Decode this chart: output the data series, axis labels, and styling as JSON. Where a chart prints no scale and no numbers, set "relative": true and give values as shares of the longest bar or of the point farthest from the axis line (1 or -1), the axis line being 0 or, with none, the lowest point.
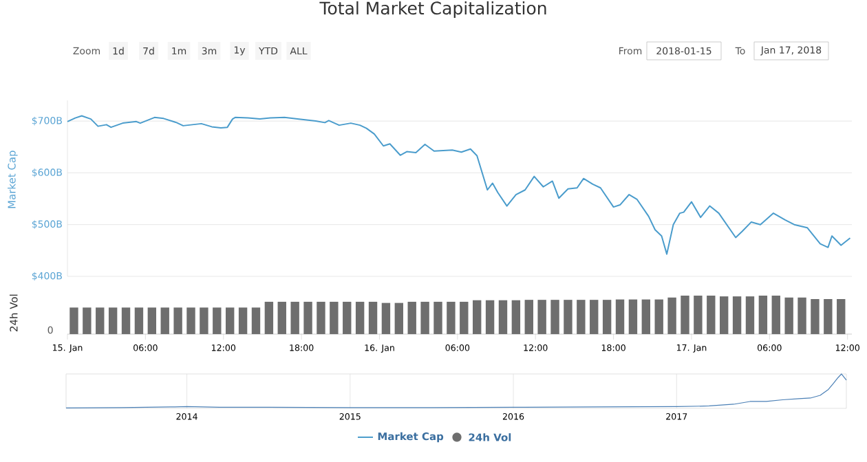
{
  "chart_data": [
    {
      "type": "line",
      "title": "Total Market Capitalization",
      "ylabel": "Market Cap",
      "annotations": [
        "Zoom",
        "1d",
        "7d",
        "1m",
        "3m",
        "1y",
        "YTD",
        "ALL",
        "From",
        "2018-01-15",
        "To",
        "Jan 17, 2018"
      ],
      "x": [
        "2018-01-15T00:00",
        "2018-01-15T00:36",
        "2018-01-15T01:06",
        "2018-01-15T01:48",
        "2018-01-15T02:21",
        "2018-01-15T03:00",
        "2018-01-15T03:21",
        "2018-01-15T04:15",
        "2018-01-15T05:18",
        "2018-01-15T05:36",
        "2018-01-15T06:42",
        "2018-01-15T07:24",
        "2018-01-15T08:24",
        "2018-01-15T08:54",
        "2018-01-15T09:36",
        "2018-01-15T10:18",
        "2018-01-15T11:06",
        "2018-01-15T11:48",
        "2018-01-15T12:18",
        "2018-01-15T12:42",
        "2018-01-15T12:54",
        "2018-01-15T13:54",
        "2018-01-15T14:48",
        "2018-01-15T15:36",
        "2018-01-15T16:42",
        "2018-01-15T17:42",
        "2018-01-15T19:06",
        "2018-01-15T19:48",
        "2018-01-15T20:06",
        "2018-01-15T20:54",
        "2018-01-15T21:48",
        "2018-01-15T22:30",
        "2018-01-15T23:00",
        "2018-01-15T23:36",
        "2018-01-16T00:18",
        "2018-01-16T00:48",
        "2018-01-16T01:36",
        "2018-01-16T02:06",
        "2018-01-16T02:48",
        "2018-01-16T03:30",
        "2018-01-16T04:12",
        "2018-01-16T05:36",
        "2018-01-16T06:18",
        "2018-01-16T07:00",
        "2018-01-16T07:30",
        "2018-01-16T08:18",
        "2018-01-16T08:42",
        "2018-01-16T09:06",
        "2018-01-16T09:48",
        "2018-01-16T10:30",
        "2018-01-16T11:12",
        "2018-01-16T11:54",
        "2018-01-16T12:36",
        "2018-01-16T13:18",
        "2018-01-16T13:48",
        "2018-01-16T14:30",
        "2018-01-16T15:12",
        "2018-01-16T15:42",
        "2018-01-16T16:24",
        "2018-01-16T17:00",
        "2018-01-16T18:00",
        "2018-01-16T18:30",
        "2018-01-16T19:12",
        "2018-01-16T19:48",
        "2018-01-16T20:42",
        "2018-01-16T21:12",
        "2018-01-16T21:42",
        "2018-01-16T22:06",
        "2018-01-16T22:36",
        "2018-01-16T23:06",
        "2018-01-16T23:24",
        "2018-01-17T00:00",
        "2018-01-17T00:42",
        "2018-01-17T01:24",
        "2018-01-17T02:06",
        "2018-01-17T03:24",
        "2018-01-17T03:54",
        "2018-01-17T04:36",
        "2018-01-17T05:18",
        "2018-01-17T06:18",
        "2018-01-17T07:12",
        "2018-01-17T07:54",
        "2018-01-17T08:54",
        "2018-01-17T09:54",
        "2018-01-17T10:30",
        "2018-01-17T10:48",
        "2018-01-17T11:30",
        "2018-01-17T12:12"
      ],
      "series": [
        {
          "name": "Market Cap",
          "color": "#4a9ccc",
          "values": [
            699,
            706,
            710,
            704,
            690,
            693,
            688,
            696,
            699,
            696,
            707,
            705,
            697,
            691,
            693,
            695,
            689,
            687,
            688,
            704,
            707,
            706,
            704,
            706,
            707,
            704,
            700,
            697,
            701,
            692,
            696,
            692,
            686,
            675,
            652,
            656,
            634,
            641,
            639,
            655,
            642,
            644,
            640,
            646,
            633,
            567,
            580,
            562,
            536,
            558,
            567,
            593,
            573,
            584,
            551,
            569,
            571,
            589,
            578,
            571,
            534,
            538,
            558,
            549,
            516,
            490,
            478,
            443,
            500,
            522,
            524,
            544,
            514,
            536,
            522,
            475,
            487,
            505,
            500,
            522,
            509,
            500,
            494,
            463,
            456,
            478,
            460,
            474
          ]
        }
      ],
      "xlim": [
        "2018-01-15T00:00",
        "2018-01-17T12:20"
      ],
      "ylim": [
        400,
        740
      ],
      "yticks": [
        {
          "value": 400,
          "label": "$400B"
        },
        {
          "value": 500,
          "label": "$500B"
        },
        {
          "value": 600,
          "label": "$600B"
        },
        {
          "value": 700,
          "label": "$700B"
        }
      ],
      "grid": "y",
      "legend": "bottom"
    },
    {
      "type": "bar",
      "ylabel": "24h Vol",
      "annotations": [
        "0"
      ],
      "x": [
        "2018-01-15T00:30",
        "2018-01-15T01:30",
        "2018-01-15T02:30",
        "2018-01-15T03:30",
        "2018-01-15T04:30",
        "2018-01-15T05:30",
        "2018-01-15T06:30",
        "2018-01-15T07:30",
        "2018-01-15T08:30",
        "2018-01-15T09:30",
        "2018-01-15T10:30",
        "2018-01-15T11:30",
        "2018-01-15T12:30",
        "2018-01-15T13:30",
        "2018-01-15T14:30",
        "2018-01-15T15:30",
        "2018-01-15T16:30",
        "2018-01-15T17:30",
        "2018-01-15T18:30",
        "2018-01-15T19:30",
        "2018-01-15T20:30",
        "2018-01-15T21:30",
        "2018-01-15T22:30",
        "2018-01-15T23:30",
        "2018-01-16T00:30",
        "2018-01-16T01:30",
        "2018-01-16T02:30",
        "2018-01-16T03:30",
        "2018-01-16T04:30",
        "2018-01-16T05:30",
        "2018-01-16T06:30",
        "2018-01-16T07:30",
        "2018-01-16T08:30",
        "2018-01-16T09:30",
        "2018-01-16T10:30",
        "2018-01-16T11:30",
        "2018-01-16T12:30",
        "2018-01-16T13:30",
        "2018-01-16T14:30",
        "2018-01-16T15:30",
        "2018-01-16T16:30",
        "2018-01-16T17:30",
        "2018-01-16T18:30",
        "2018-01-16T19:30",
        "2018-01-16T20:30",
        "2018-01-16T21:30",
        "2018-01-16T22:30",
        "2018-01-16T23:30",
        "2018-01-17T00:30",
        "2018-01-17T01:30",
        "2018-01-17T02:30",
        "2018-01-17T03:30",
        "2018-01-17T04:30",
        "2018-01-17T05:30",
        "2018-01-17T06:30",
        "2018-01-17T07:30",
        "2018-01-17T08:30",
        "2018-01-17T09:30",
        "2018-01-17T10:30",
        "2018-01-17T11:30"
      ],
      "series": [
        {
          "name": "24h Vol",
          "color": "#6e6e6e",
          "values": [
            0.69,
            0.69,
            0.69,
            0.69,
            0.69,
            0.69,
            0.69,
            0.69,
            0.69,
            0.69,
            0.69,
            0.69,
            0.69,
            0.69,
            0.69,
            0.84,
            0.84,
            0.84,
            0.84,
            0.84,
            0.84,
            0.84,
            0.84,
            0.84,
            0.81,
            0.81,
            0.84,
            0.84,
            0.84,
            0.84,
            0.84,
            0.88,
            0.88,
            0.88,
            0.88,
            0.89,
            0.89,
            0.89,
            0.89,
            0.89,
            0.89,
            0.89,
            0.9,
            0.9,
            0.9,
            0.9,
            0.95,
            1,
            1,
            1,
            0.98,
            0.98,
            0.98,
            1,
            1,
            0.95,
            0.95,
            0.91,
            0.91,
            0.91
          ]
        }
      ],
      "relative": true,
      "xlim": [
        "2018-01-15T00:00",
        "2018-01-17T12:20"
      ],
      "xticks": [
        {
          "value": "2018-01-15T00:00",
          "label": "15. Jan"
        },
        {
          "value": "2018-01-15T06:00",
          "label": "06:00"
        },
        {
          "value": "2018-01-15T12:00",
          "label": "12:00"
        },
        {
          "value": "2018-01-15T18:00",
          "label": "18:00"
        },
        {
          "value": "2018-01-16T00:00",
          "label": "16. Jan"
        },
        {
          "value": "2018-01-16T06:00",
          "label": "06:00"
        },
        {
          "value": "2018-01-16T12:00",
          "label": "12:00"
        },
        {
          "value": "2018-01-16T18:00",
          "label": "18:00"
        },
        {
          "value": "2018-01-17T00:00",
          "label": "17. Jan"
        },
        {
          "value": "2018-01-17T06:00",
          "label": "06:00"
        },
        {
          "value": "2018-01-17T12:00",
          "label": "12:00"
        }
      ],
      "legend": "bottom"
    },
    {
      "type": "line",
      "x": [
        2013.26,
        2013.6,
        2013.9,
        2014.0,
        2014.2,
        2014.5,
        2015.0,
        2015.5,
        2016.0,
        2016.5,
        2017.0,
        2017.2,
        2017.35,
        2017.45,
        2017.55,
        2017.65,
        2017.75,
        2017.82,
        2017.88,
        2017.93,
        2017.96,
        2017.99,
        2018.01,
        2018.03,
        2018.04
      ],
      "series": [
        {
          "color": "#4a7fb5",
          "values": [
            0.01,
            0.02,
            0.04,
            0.05,
            0.03,
            0.03,
            0.02,
            0.02,
            0.03,
            0.04,
            0.05,
            0.07,
            0.12,
            0.2,
            0.2,
            0.25,
            0.28,
            0.3,
            0.38,
            0.55,
            0.72,
            0.9,
            1,
            0.88,
            0.82
          ]
        }
      ],
      "relative": true,
      "xlim": [
        2013.26,
        2018.04
      ],
      "xticks": [
        2014,
        2015,
        2016,
        2017
      ],
      "grid": "x"
    }
  ]
}
